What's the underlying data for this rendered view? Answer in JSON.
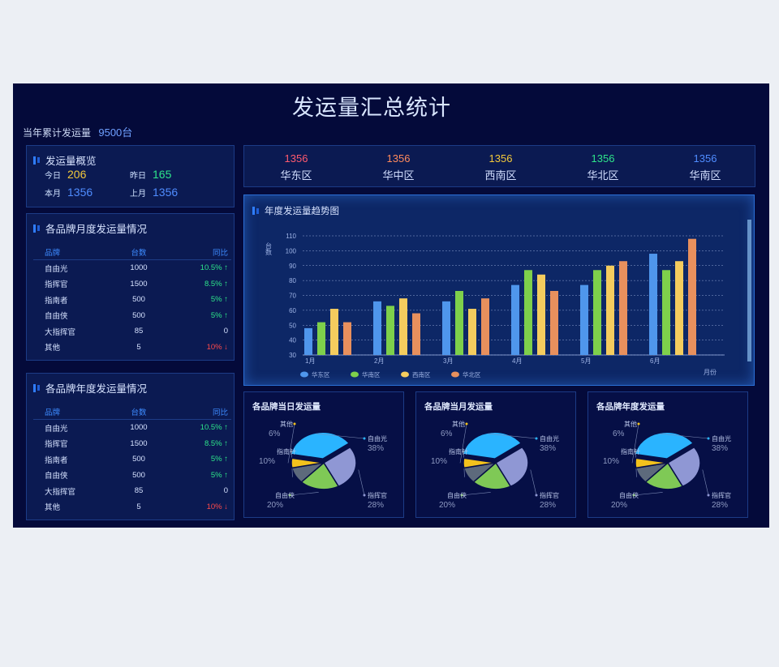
{
  "title": "发运量汇总统计",
  "cumulative": {
    "label": "当年累计发运量",
    "value": "9500台"
  },
  "overview": {
    "title": "发运量概览",
    "today_label": "今日",
    "today": "206",
    "yesterday_label": "昨日",
    "yesterday": "165",
    "month_label": "本月",
    "month": "1356",
    "last_month_label": "上月",
    "last_month": "1356"
  },
  "monthly_table": {
    "title": "各品牌月度发运量情况",
    "headers": [
      "品牌",
      "台数",
      "同比"
    ],
    "rows": [
      {
        "brand": "自由光",
        "count": "1000",
        "yoy": "10.5% ↑",
        "trend": "up"
      },
      {
        "brand": "指挥官",
        "count": "1500",
        "yoy": "8.5% ↑",
        "trend": "up"
      },
      {
        "brand": "指南者",
        "count": "500",
        "yoy": "5% ↑",
        "trend": "up"
      },
      {
        "brand": "自由侠",
        "count": "500",
        "yoy": "5% ↑",
        "trend": "up"
      },
      {
        "brand": "大指挥官",
        "count": "85",
        "yoy": "0",
        "trend": "flat"
      },
      {
        "brand": "其他",
        "count": "5",
        "yoy": "10% ↓",
        "trend": "down"
      }
    ]
  },
  "yearly_table": {
    "title": "各品牌年度发运量情况",
    "headers": [
      "品牌",
      "台数",
      "同比"
    ],
    "rows": [
      {
        "brand": "自由光",
        "count": "1000",
        "yoy": "10.5% ↑",
        "trend": "up"
      },
      {
        "brand": "指挥官",
        "count": "1500",
        "yoy": "8.5% ↑",
        "trend": "up"
      },
      {
        "brand": "指南者",
        "count": "500",
        "yoy": "5% ↑",
        "trend": "up"
      },
      {
        "brand": "自由侠",
        "count": "500",
        "yoy": "5% ↑",
        "trend": "up"
      },
      {
        "brand": "大指挥官",
        "count": "85",
        "yoy": "0",
        "trend": "flat"
      },
      {
        "brand": "其他",
        "count": "5",
        "yoy": "10% ↓",
        "trend": "down"
      }
    ]
  },
  "regions": [
    {
      "name": "华东区",
      "value": "1356",
      "color": "#ff5a6e"
    },
    {
      "name": "华中区",
      "value": "1356",
      "color": "#ff8a5c"
    },
    {
      "name": "西南区",
      "value": "1356",
      "color": "#f3c93a"
    },
    {
      "name": "华北区",
      "value": "1356",
      "color": "#2ee58a"
    },
    {
      "name": "华南区",
      "value": "1356",
      "color": "#4f8cff"
    }
  ],
  "colors": {
    "background": "#040a3a",
    "panel": "#0b1a52",
    "border": "#1c3b86",
    "accent": "#2f7dff"
  },
  "chart_data": [
    {
      "type": "bar",
      "title": "年度发运量趋势图",
      "ylabel": "台数",
      "xlabel": "月份",
      "categories": [
        "1月",
        "2月",
        "3月",
        "4月",
        "5月",
        "6月"
      ],
      "yticks": [
        30,
        40,
        50,
        60,
        70,
        80,
        90,
        100,
        110
      ],
      "ylim": [
        30,
        110
      ],
      "grid": true,
      "legend": "bottom-left",
      "series": [
        {
          "name": "华东区",
          "color": "#4f96ec",
          "values": [
            48,
            66,
            66,
            77,
            77,
            98
          ]
        },
        {
          "name": "华南区",
          "color": "#7ed04b",
          "values": [
            52,
            63,
            73,
            87,
            87,
            87
          ]
        },
        {
          "name": "西南区",
          "color": "#f4cc5e",
          "values": [
            61,
            68,
            61,
            84,
            90,
            93
          ]
        },
        {
          "name": "华北区",
          "color": "#e8905d",
          "values": [
            52,
            58,
            68,
            73,
            93,
            108
          ]
        }
      ]
    },
    {
      "type": "pie",
      "title": "各品牌当日发运量",
      "slices": [
        {
          "label": "自由光",
          "value": 38,
          "pct": "38%",
          "color": "#2ab4ff"
        },
        {
          "label": "指挥官",
          "value": 28,
          "pct": "28%",
          "color": "#8f97d4"
        },
        {
          "label": "自由侠",
          "value": 20,
          "pct": "20%",
          "color": "#7fc956"
        },
        {
          "label": "指南针",
          "value": 10,
          "pct": "10%",
          "color": "#5d6a7c"
        },
        {
          "label": "其他",
          "value": 6,
          "pct": "6%",
          "color": "#f3c21c"
        }
      ]
    },
    {
      "type": "pie",
      "title": "各品牌当月发运量",
      "slices": [
        {
          "label": "自由光",
          "value": 38,
          "pct": "38%",
          "color": "#2ab4ff"
        },
        {
          "label": "指挥官",
          "value": 28,
          "pct": "28%",
          "color": "#8f97d4"
        },
        {
          "label": "自由侠",
          "value": 20,
          "pct": "20%",
          "color": "#7fc956"
        },
        {
          "label": "指南针",
          "value": 10,
          "pct": "10%",
          "color": "#5d6a7c"
        },
        {
          "label": "其他",
          "value": 6,
          "pct": "6%",
          "color": "#f3c21c"
        }
      ]
    },
    {
      "type": "pie",
      "title": "各品牌年度发运量",
      "slices": [
        {
          "label": "自由光",
          "value": 38,
          "pct": "38%",
          "color": "#2ab4ff"
        },
        {
          "label": "指挥官",
          "value": 28,
          "pct": "28%",
          "color": "#8f97d4"
        },
        {
          "label": "自由侠",
          "value": 20,
          "pct": "20%",
          "color": "#7fc956"
        },
        {
          "label": "指南针",
          "value": 10,
          "pct": "10%",
          "color": "#5d6a7c"
        },
        {
          "label": "其他",
          "value": 6,
          "pct": "6%",
          "color": "#f3c21c"
        }
      ]
    }
  ]
}
